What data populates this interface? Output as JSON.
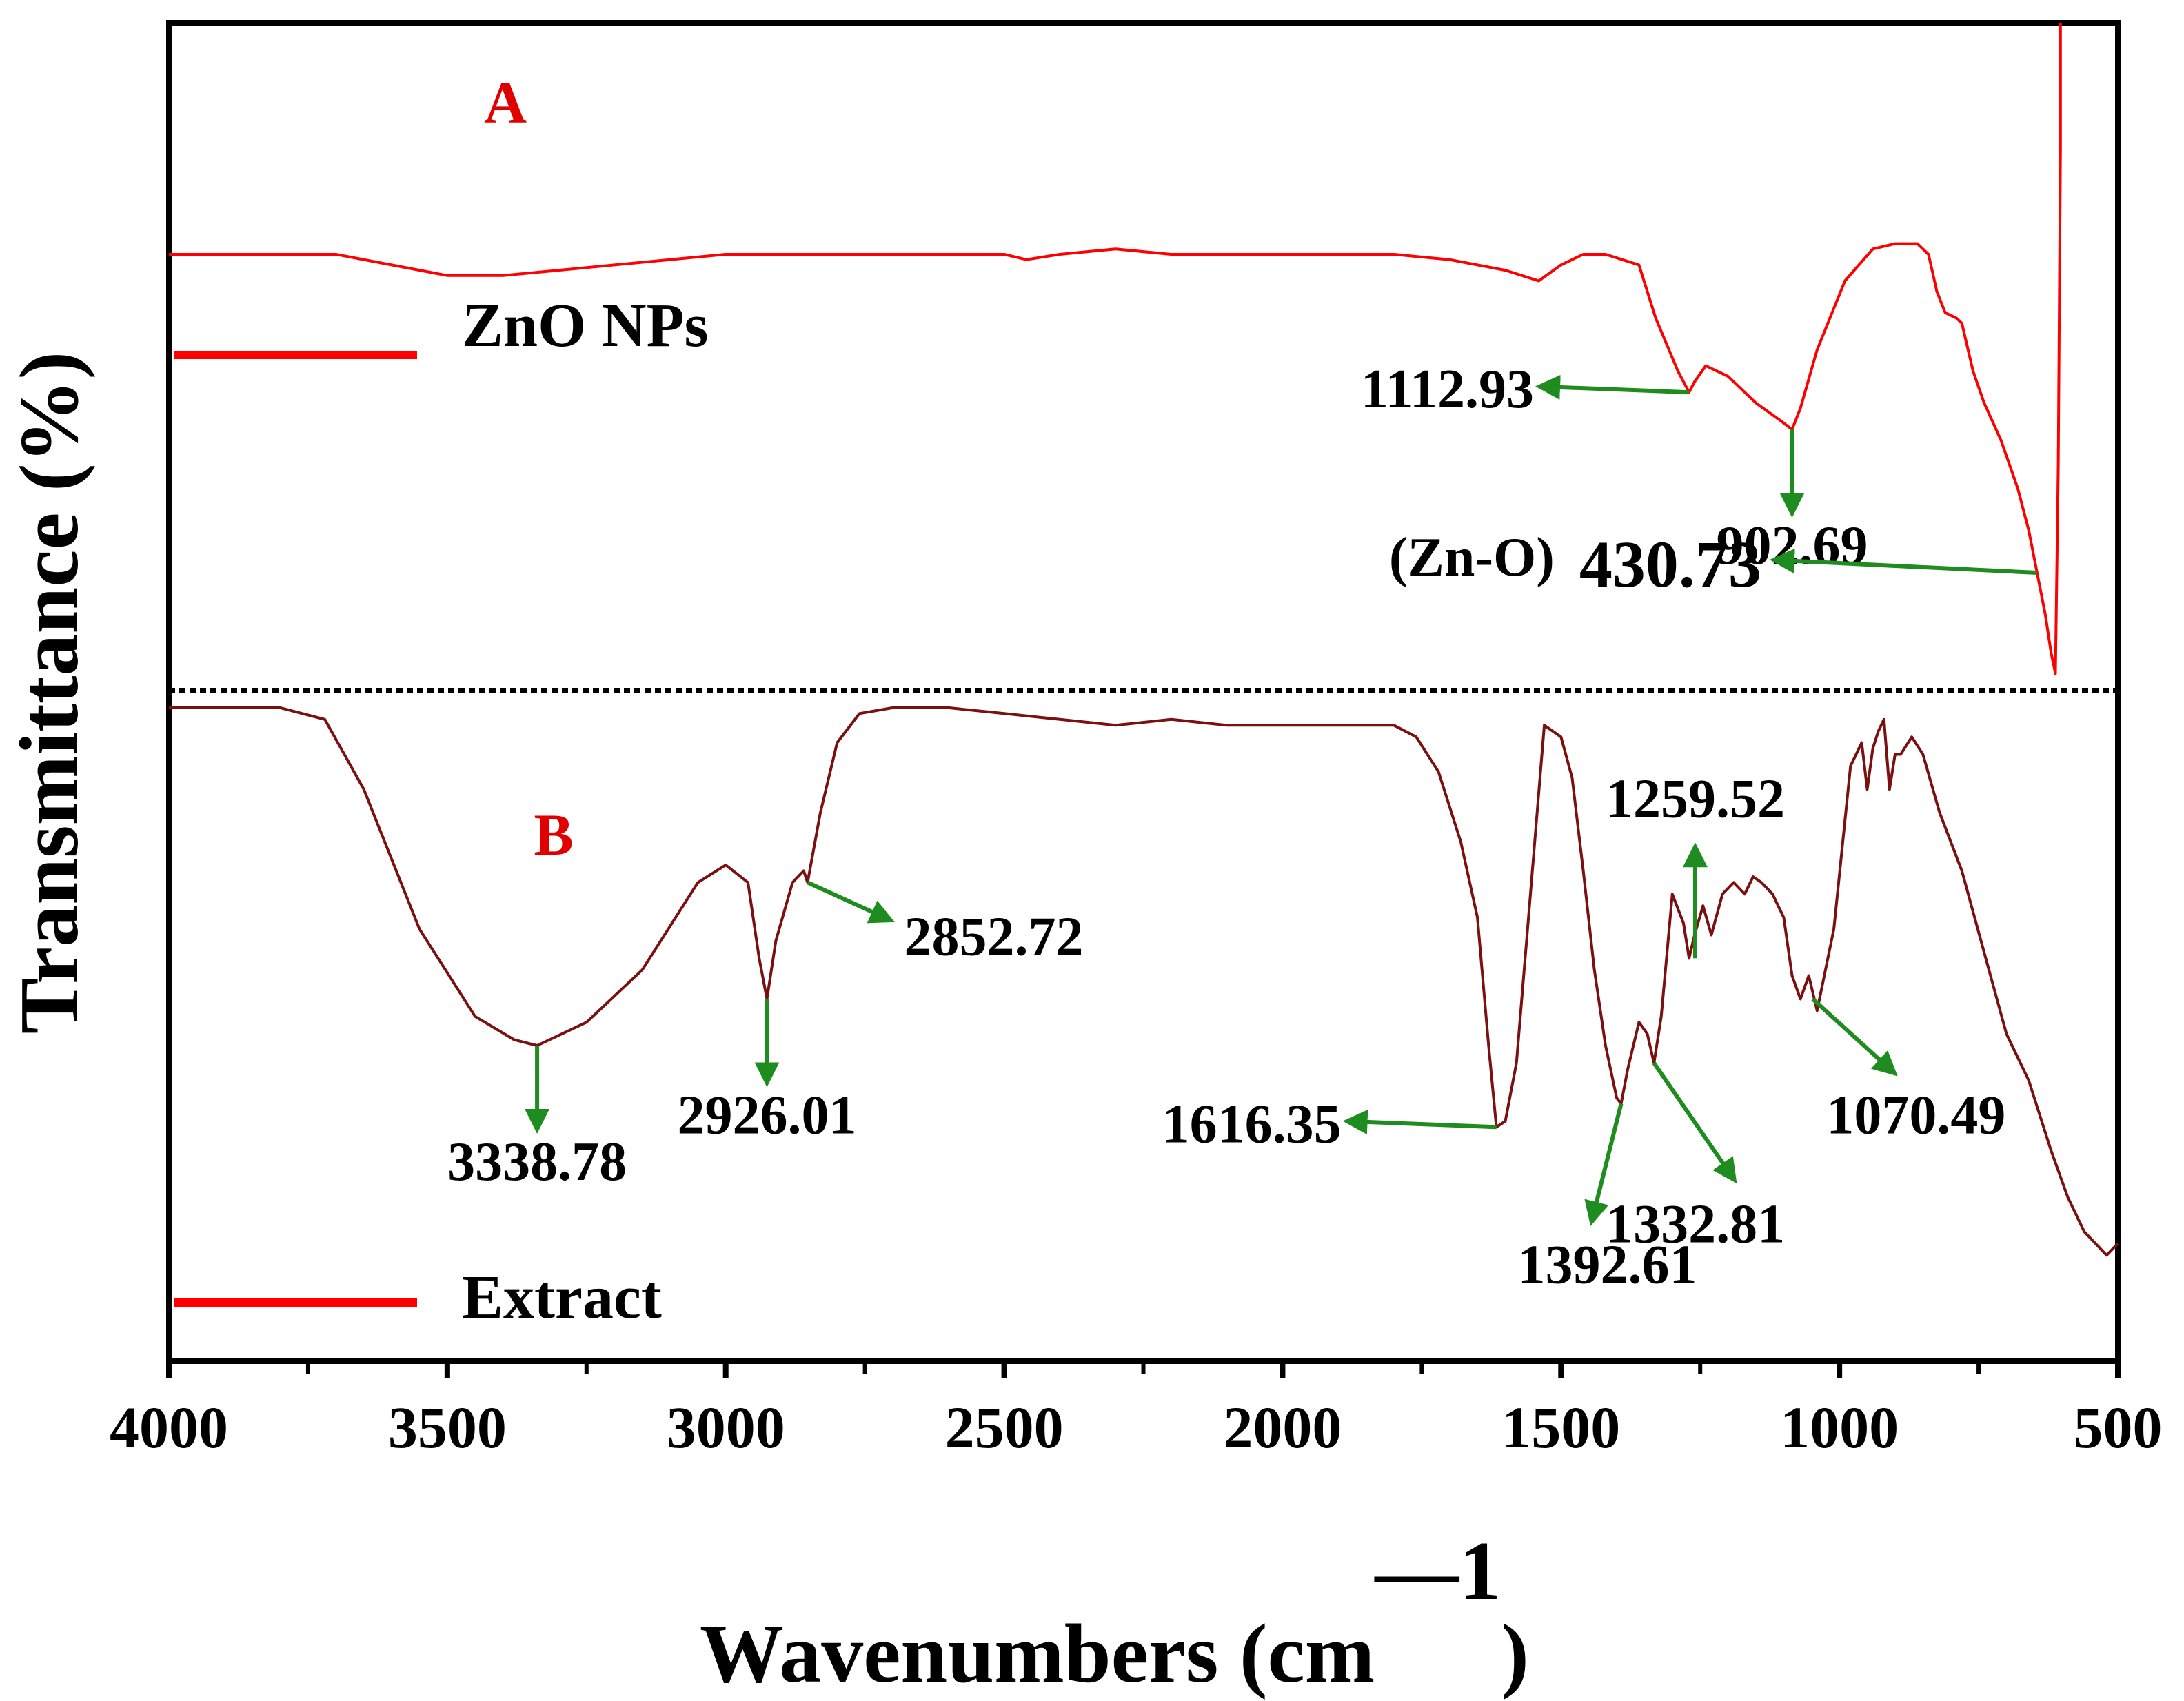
{
  "chart_data": {
    "type": "line",
    "title": "",
    "xlabel": "Wavenumbers (cm",
    "xlabel_superscript": "—1",
    "xlabel_close": ")",
    "ylabel": "Transmittance (%)",
    "xlim": [
      4000,
      500
    ],
    "x_reversed": true,
    "xticks": [
      4000,
      3500,
      3000,
      2500,
      2000,
      1500,
      1000,
      500
    ],
    "xtick_labels": [
      "4000",
      "3500",
      "3000",
      "2500",
      "2000",
      "1500",
      "1000",
      "500"
    ],
    "ylim": [
      0,
      100
    ],
    "grid": false,
    "colors": {
      "axis": "#000000",
      "panel_a_line": "#ff0000",
      "panel_b_line": "#7a1010",
      "panel_label": "#e00000",
      "legend_line": "#ff0000",
      "arrow": "#1e8c1e",
      "divider": "#000000"
    },
    "panels": [
      {
        "id": "A",
        "label": "A",
        "legend": "ZnO NPs",
        "series": {
          "name": "ZnO NPs",
          "x": [
            4000,
            3900,
            3800,
            3700,
            3600,
            3500,
            3400,
            3300,
            3200,
            3100,
            3000,
            2900,
            2800,
            2700,
            2600,
            2500,
            2460,
            2400,
            2300,
            2200,
            2100,
            2000,
            1900,
            1800,
            1700,
            1600,
            1540,
            1500,
            1460,
            1420,
            1360,
            1330,
            1290,
            1270,
            1260,
            1240,
            1200,
            1150,
            1110,
            1085,
            1070,
            1040,
            990,
            940,
            900,
            860,
            840,
            825,
            810,
            790,
            780,
            760,
            740,
            710,
            680,
            660,
            645,
            630,
            620,
            612,
            607,
            603
          ],
          "y": [
            80,
            80,
            80,
            80,
            78,
            76,
            76,
            77,
            78,
            79,
            80,
            80,
            80,
            80,
            80,
            80,
            79,
            80,
            81,
            80,
            80,
            80,
            80,
            80,
            79,
            77,
            75,
            78,
            80,
            80,
            78,
            68,
            58,
            54,
            56,
            59,
            57,
            52,
            49,
            47,
            51,
            62,
            75,
            81,
            82,
            82,
            80,
            73,
            69,
            68,
            67,
            58,
            52,
            45,
            36,
            28,
            20,
            12,
            5,
            1,
            40,
            100
          ]
        },
        "annotations": [
          {
            "label": "1112.93",
            "x": 1270,
            "y": 54,
            "arrow": "left"
          },
          {
            "label": "902.69",
            "x": 1085,
            "y": 47,
            "arrow": "down"
          },
          {
            "label": "430.73",
            "x": 645,
            "y": 20,
            "arrow": "left",
            "prefix": "(Zn-O)"
          }
        ]
      },
      {
        "id": "B",
        "label": "B",
        "legend": "Extract",
        "series": {
          "name": "Extract",
          "x": [
            4000,
            3800,
            3720,
            3650,
            3550,
            3450,
            3380,
            3338.78,
            3250,
            3150,
            3050,
            3000,
            2960,
            2940,
            2926,
            2910,
            2880,
            2860,
            2853,
            2830,
            2800,
            2760,
            2700,
            2600,
            2500,
            2400,
            2300,
            2200,
            2100,
            2000,
            1900,
            1800,
            1760,
            1720,
            1680,
            1650,
            1630,
            1616,
            1600,
            1580,
            1560,
            1530,
            1500,
            1480,
            1460,
            1440,
            1420,
            1400,
            1392,
            1380,
            1360,
            1345,
            1333,
            1320,
            1300,
            1280,
            1270,
            1260,
            1245,
            1230,
            1210,
            1190,
            1170,
            1155,
            1140,
            1120,
            1100,
            1085,
            1070,
            1055,
            1040,
            1010,
            980,
            960,
            950,
            940,
            930,
            920,
            910,
            900,
            890,
            870,
            850,
            820,
            780,
            740,
            700,
            660,
            620,
            590,
            560,
            540,
            520,
            500
          ],
          "y": [
            98,
            98,
            96,
            84,
            60,
            45,
            41,
            40,
            44,
            53,
            68,
            71,
            68,
            55,
            48,
            58,
            68,
            70,
            68,
            80,
            92,
            97,
            98,
            98,
            97,
            96,
            95,
            96,
            95,
            95,
            95,
            95,
            93,
            87,
            75,
            62,
            40,
            26,
            27,
            37,
            60,
            95,
            93,
            86,
            70,
            53,
            40,
            31,
            30,
            36,
            44,
            42,
            37,
            45,
            66,
            61,
            55,
            59,
            64,
            59,
            66,
            68,
            66,
            69,
            68,
            66,
            62,
            52,
            48,
            52,
            46,
            60,
            88,
            92,
            84,
            91,
            94,
            96,
            84,
            90,
            90,
            93,
            90,
            80,
            70,
            56,
            42,
            34,
            22,
            14,
            8,
            6,
            4,
            6
          ]
        },
        "annotations": [
          {
            "label": "3338.78",
            "x": 3338.78,
            "y": 40,
            "arrow": "down"
          },
          {
            "label": "2926.01",
            "x": 2926,
            "y": 48,
            "arrow": "down"
          },
          {
            "label": "2852.72",
            "x": 2853,
            "y": 68,
            "arrow": "down-right"
          },
          {
            "label": "1616.35",
            "x": 1616,
            "y": 26,
            "arrow": "left"
          },
          {
            "label": "1392.61",
            "x": 1392,
            "y": 30,
            "arrow": "down-left"
          },
          {
            "label": "1332.81",
            "x": 1333,
            "y": 37,
            "arrow": "down-right"
          },
          {
            "label": "1259.52",
            "x": 1259,
            "y": 55,
            "arrow": "up"
          },
          {
            "label": "1070.49",
            "x": 1048,
            "y": 48,
            "arrow": "down-right"
          }
        ]
      }
    ]
  }
}
